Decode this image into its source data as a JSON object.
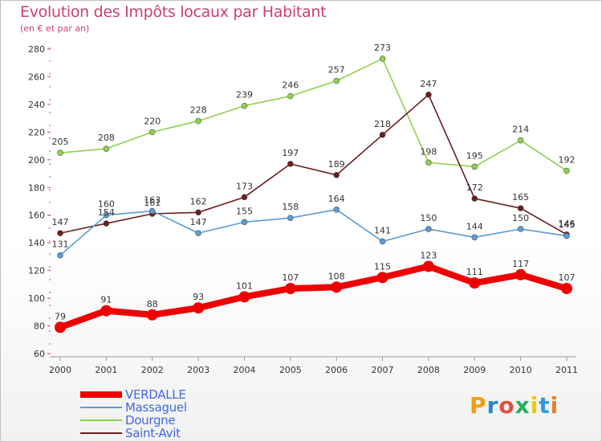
{
  "header": {
    "title": "Evolution des Impôts locaux par Habitant",
    "subtitle": "(en € et par an)"
  },
  "logo": {
    "letters": [
      "P",
      "r",
      "o",
      "x",
      "i",
      "t",
      "i"
    ],
    "colors": [
      "#f39c12",
      "#2e86c1",
      "#e74c3c",
      "#27ae60",
      "#f1c40f",
      "#3498db",
      "#e67e22"
    ]
  },
  "chart_data": {
    "type": "line",
    "title": "Evolution des Impôts locaux par Habitant",
    "subtitle": "(en € et par an)",
    "xlabel": "",
    "ylabel": "",
    "x": [
      "2000",
      "2001",
      "2002",
      "2003",
      "2004",
      "2005",
      "2006",
      "2007",
      "2008",
      "2009",
      "2010",
      "2011"
    ],
    "ylim": [
      60,
      280
    ],
    "yticks": [
      60,
      80,
      100,
      120,
      140,
      160,
      180,
      200,
      220,
      240,
      260,
      280
    ],
    "grid": false,
    "legend_position": "bottom-left",
    "series": [
      {
        "name": "VERDALLE",
        "color": "#ee0000",
        "values": [
          79,
          91,
          88,
          93,
          101,
          107,
          108,
          115,
          123,
          111,
          117,
          107
        ]
      },
      {
        "name": "Massaguel",
        "color": "#5b9bd5",
        "values": [
          131,
          160,
          163,
          147,
          155,
          158,
          164,
          141,
          150,
          144,
          150,
          145
        ]
      },
      {
        "name": "Dourgne",
        "color": "#8fd14f",
        "values": [
          205,
          208,
          220,
          228,
          239,
          246,
          257,
          273,
          198,
          195,
          214,
          192
        ]
      },
      {
        "name": "Saint-Avit",
        "color": "#6b1c1c",
        "values": [
          147,
          154,
          161,
          162,
          173,
          197,
          189,
          218,
          247,
          172,
          165,
          146
        ]
      }
    ]
  }
}
